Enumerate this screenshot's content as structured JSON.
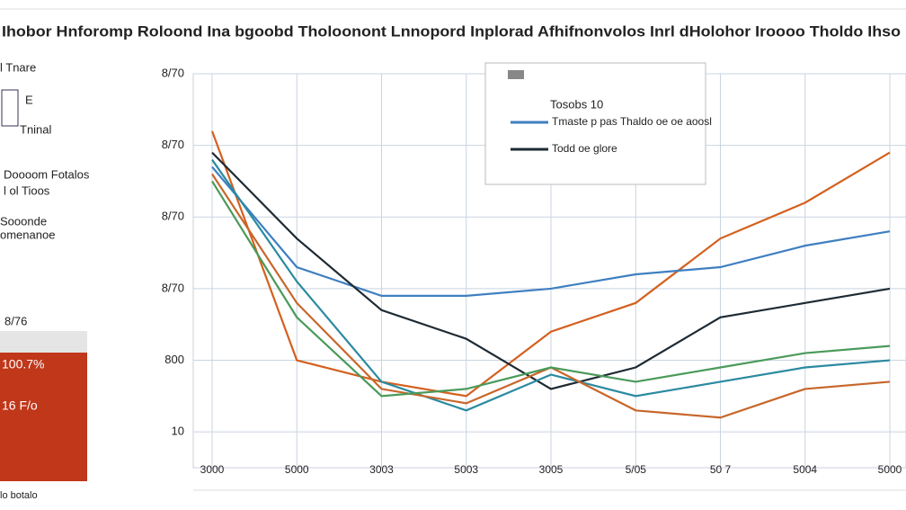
{
  "chart_data": {
    "type": "line",
    "title": "Ihobor Hnforomp Roloond Ina bgoobd Tholoonont Lnnopord Inplorad Afhifnonvolos Inrl dHolohor Iroooo Tholdo Ihso",
    "categories": [
      "3000",
      "5000",
      "3003",
      "5003",
      "3005",
      "5/05",
      "50 7",
      "5004",
      "5000"
    ],
    "ylim": [
      -0.5,
      5.0
    ],
    "yticks": [
      {
        "value": 0,
        "label": "10"
      },
      {
        "value": 1,
        "label": "800"
      },
      {
        "value": 2,
        "label": "8/70"
      },
      {
        "value": 3,
        "label": "8/70"
      },
      {
        "value": 4,
        "label": "8/70"
      },
      {
        "value": 5,
        "label": "8/70"
      }
    ],
    "grid": true,
    "legend_title": "Tosobs 10",
    "series": [
      {
        "color": "#d4601e",
        "values": [
          4.2,
          1.0,
          0.7,
          0.5,
          1.4,
          1.8,
          2.7,
          3.2,
          3.9
        ]
      },
      {
        "name": "Tmaste p pas Thaldo oe oe aoosl",
        "color": "#3f7fc0",
        "values": [
          3.7,
          2.3,
          1.9,
          1.9,
          2.0,
          2.2,
          2.3,
          2.6,
          2.8
        ]
      },
      {
        "name": "Todd oe glore",
        "color": "#1e2a33",
        "values": [
          3.9,
          2.7,
          1.7,
          1.3,
          0.6,
          0.9,
          1.6,
          1.8,
          2.0
        ]
      },
      {
        "color": "#2a8aa0",
        "values": [
          3.8,
          2.1,
          0.7,
          0.3,
          0.8,
          0.5,
          0.7,
          0.9,
          1.0
        ]
      },
      {
        "color": "#c8662a",
        "values": [
          3.6,
          1.8,
          0.6,
          0.4,
          0.9,
          0.3,
          0.2,
          0.6,
          0.7
        ]
      },
      {
        "color": "#4a9a5a",
        "values": [
          3.5,
          1.6,
          0.5,
          0.6,
          0.9,
          0.7,
          0.9,
          1.1,
          1.2
        ]
      }
    ]
  },
  "sidebar": {
    "labels": [
      "l Tnare",
      "E",
      "Tninal",
      "Doooom Fotalos",
      "l ol Tioos",
      "Sooonde",
      "omenanoe"
    ],
    "gray_block": "8/76",
    "red_block": [
      "100.7%",
      "16 F/o"
    ],
    "footer": "lo botalo"
  }
}
